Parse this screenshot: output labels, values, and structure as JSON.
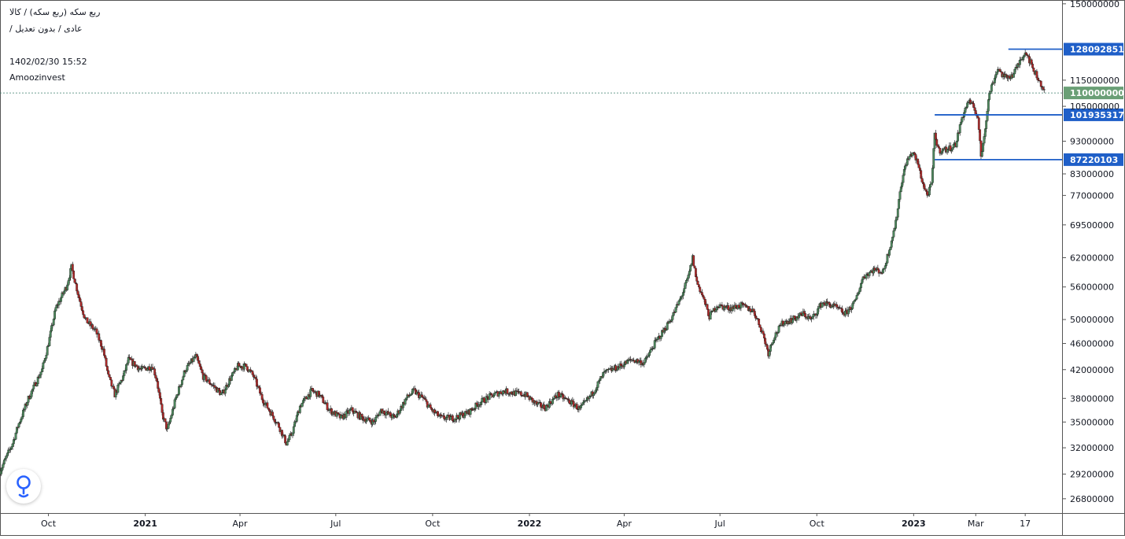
{
  "legend": {
    "symbol_line": "ربع سکه (ربع سکه) / کالا",
    "type_line": "عادی / بدون تعدیل /",
    "datetime": "1402/02/30 15:52",
    "brand": "Amoozinvest"
  },
  "colors": {
    "up": "#4e8a5e",
    "down": "#b02a2a",
    "wick": "#222222",
    "level_line": "#1f5fc8",
    "level_label_bg": "#1f5fc8",
    "last_price_bg": "#6a9f76",
    "last_price_line": "#3d7d6b",
    "axis_text": "#131722",
    "border": "#555555"
  },
  "chart_data": {
    "type": "candlestick",
    "y_scale": "log",
    "y_range": [
      25500000,
      152000000
    ],
    "y_ticks": [
      150000000,
      115000000,
      105000000,
      93000000,
      83000000,
      77000000,
      69500000,
      62000000,
      56000000,
      50000000,
      46000000,
      42000000,
      38000000,
      35000000,
      32000000,
      29200000,
      26800000
    ],
    "y_tick_labels": [
      "150000000",
      "115000000",
      "105000000",
      "93000000",
      "83000000",
      "77000000",
      "69500000",
      "62000000",
      "56000000",
      "50000000",
      "46000000",
      "42000000",
      "38000000",
      "35000000",
      "32000000",
      "29200000",
      "26800000"
    ],
    "x_ticks": [
      {
        "label": "Oct",
        "date": "2020-10-01",
        "bold": false
      },
      {
        "label": "2021",
        "date": "2021-01-01",
        "bold": true
      },
      {
        "label": "Apr",
        "date": "2021-04-01",
        "bold": false
      },
      {
        "label": "Jul",
        "date": "2021-07-01",
        "bold": false
      },
      {
        "label": "Oct",
        "date": "2021-10-01",
        "bold": false
      },
      {
        "label": "2022",
        "date": "2022-01-01",
        "bold": true
      },
      {
        "label": "Apr",
        "date": "2022-04-01",
        "bold": false
      },
      {
        "label": "Jul",
        "date": "2022-07-01",
        "bold": false
      },
      {
        "label": "Oct",
        "date": "2022-10-01",
        "bold": false
      },
      {
        "label": "2023",
        "date": "2023-01-01",
        "bold": true
      },
      {
        "label": "Mar",
        "date": "2023-03-01",
        "bold": false
      },
      {
        "label": "17",
        "date": "2023-04-17",
        "bold": false
      }
    ],
    "x_range": [
      "2020-08-16",
      "2023-05-22"
    ],
    "anchors": [
      [
        "2020-08-16",
        29500000
      ],
      [
        "2020-08-28",
        32500000
      ],
      [
        "2020-09-02",
        34500000
      ],
      [
        "2020-09-12",
        38000000
      ],
      [
        "2020-09-25",
        42000000
      ],
      [
        "2020-10-01",
        46000000
      ],
      [
        "2020-10-08",
        52000000
      ],
      [
        "2020-10-18",
        56000000
      ],
      [
        "2020-10-23",
        60000000
      ],
      [
        "2020-10-30",
        54000000
      ],
      [
        "2020-11-05",
        50000000
      ],
      [
        "2020-11-15",
        48000000
      ],
      [
        "2020-11-22",
        45000000
      ],
      [
        "2020-11-27",
        41000000
      ],
      [
        "2020-12-03",
        38500000
      ],
      [
        "2020-12-11",
        41000000
      ],
      [
        "2020-12-16",
        43500000
      ],
      [
        "2020-12-28",
        42000000
      ],
      [
        "2021-01-08",
        42500000
      ],
      [
        "2021-01-12",
        40500000
      ],
      [
        "2021-01-17",
        36000000
      ],
      [
        "2021-01-22",
        34000000
      ],
      [
        "2021-01-30",
        38000000
      ],
      [
        "2021-02-08",
        42000000
      ],
      [
        "2021-02-18",
        44000000
      ],
      [
        "2021-02-25",
        41000000
      ],
      [
        "2021-03-08",
        39500000
      ],
      [
        "2021-03-15",
        38500000
      ],
      [
        "2021-03-22",
        40500000
      ],
      [
        "2021-03-30",
        42500000
      ],
      [
        "2021-04-07",
        42500000
      ],
      [
        "2021-04-14",
        41000000
      ],
      [
        "2021-04-22",
        38000000
      ],
      [
        "2021-05-01",
        36000000
      ],
      [
        "2021-05-08",
        34500000
      ],
      [
        "2021-05-15",
        32500000
      ],
      [
        "2021-05-20",
        33500000
      ],
      [
        "2021-05-28",
        37000000
      ],
      [
        "2021-06-08",
        39000000
      ],
      [
        "2021-06-15",
        38500000
      ],
      [
        "2021-06-25",
        36500000
      ],
      [
        "2021-07-06",
        35500000
      ],
      [
        "2021-07-16",
        36500000
      ],
      [
        "2021-07-26",
        35500000
      ],
      [
        "2021-08-06",
        35000000
      ],
      [
        "2021-08-13",
        36500000
      ],
      [
        "2021-08-26",
        35500000
      ],
      [
        "2021-09-06",
        38000000
      ],
      [
        "2021-09-13",
        39000000
      ],
      [
        "2021-09-22",
        38000000
      ],
      [
        "2021-09-30",
        36500000
      ],
      [
        "2021-10-09",
        35500000
      ],
      [
        "2021-10-22",
        35500000
      ],
      [
        "2021-11-04",
        36200000
      ],
      [
        "2021-11-15",
        37500000
      ],
      [
        "2021-11-28",
        38500000
      ],
      [
        "2021-12-08",
        39000000
      ],
      [
        "2021-12-18",
        38700000
      ],
      [
        "2021-12-28",
        38500000
      ],
      [
        "2022-01-08",
        37200000
      ],
      [
        "2022-01-16",
        36800000
      ],
      [
        "2022-01-28",
        38500000
      ],
      [
        "2022-02-09",
        37500000
      ],
      [
        "2022-02-18",
        36600000
      ],
      [
        "2022-03-01",
        38500000
      ],
      [
        "2022-03-13",
        41500000
      ],
      [
        "2022-03-28",
        42500000
      ],
      [
        "2022-04-08",
        43500000
      ],
      [
        "2022-04-20",
        43000000
      ],
      [
        "2022-04-30",
        46000000
      ],
      [
        "2022-05-10",
        48500000
      ],
      [
        "2022-05-18",
        51000000
      ],
      [
        "2022-05-25",
        54000000
      ],
      [
        "2022-06-01",
        58000000
      ],
      [
        "2022-06-05",
        62000000
      ],
      [
        "2022-06-09",
        57000000
      ],
      [
        "2022-06-14",
        54500000
      ],
      [
        "2022-06-21",
        50500000
      ],
      [
        "2022-06-28",
        52500000
      ],
      [
        "2022-07-10",
        52000000
      ],
      [
        "2022-07-21",
        52500000
      ],
      [
        "2022-08-02",
        51500000
      ],
      [
        "2022-08-10",
        48000000
      ],
      [
        "2022-08-16",
        44500000
      ],
      [
        "2022-08-21",
        47000000
      ],
      [
        "2022-08-30",
        49500000
      ],
      [
        "2022-09-08",
        50000000
      ],
      [
        "2022-09-18",
        51000000
      ],
      [
        "2022-09-26",
        50000000
      ],
      [
        "2022-10-06",
        53000000
      ],
      [
        "2022-10-16",
        52500000
      ],
      [
        "2022-10-28",
        51000000
      ],
      [
        "2022-11-06",
        53000000
      ],
      [
        "2022-11-14",
        58000000
      ],
      [
        "2022-11-24",
        59500000
      ],
      [
        "2022-12-03",
        59000000
      ],
      [
        "2022-12-09",
        64000000
      ],
      [
        "2022-12-15",
        70000000
      ],
      [
        "2022-12-20",
        80000000
      ],
      [
        "2022-12-25",
        86500000
      ],
      [
        "2022-12-31",
        89500000
      ],
      [
        "2023-01-05",
        86000000
      ],
      [
        "2023-01-10",
        80000000
      ],
      [
        "2023-01-14",
        77000000
      ],
      [
        "2023-01-18",
        80000000
      ],
      [
        "2023-01-21",
        95000000
      ],
      [
        "2023-01-25",
        90000000
      ],
      [
        "2023-02-03",
        90500000
      ],
      [
        "2023-02-10",
        92000000
      ],
      [
        "2023-02-16",
        101000000
      ],
      [
        "2023-02-22",
        107000000
      ],
      [
        "2023-02-28",
        104000000
      ],
      [
        "2023-03-03",
        101000000
      ],
      [
        "2023-03-06",
        88000000
      ],
      [
        "2023-03-09",
        95000000
      ],
      [
        "2023-03-14",
        110000000
      ],
      [
        "2023-03-22",
        120000000
      ],
      [
        "2023-03-28",
        116000000
      ],
      [
        "2023-04-05",
        117000000
      ],
      [
        "2023-04-10",
        121000000
      ],
      [
        "2023-04-14",
        125000000
      ],
      [
        "2023-04-18",
        127000000
      ],
      [
        "2023-04-23",
        121000000
      ],
      [
        "2023-04-30",
        115000000
      ],
      [
        "2023-05-06",
        110000000
      ]
    ],
    "levels": [
      {
        "value": 128092851,
        "label": "128092851",
        "from_date": "2023-04-01"
      },
      {
        "value": 101935317,
        "label": "101935317",
        "from_date": "2023-01-21"
      },
      {
        "value": 87220103,
        "label": "87220103",
        "from_date": "2023-01-21"
      }
    ],
    "last_price": {
      "value": 110000000,
      "label": "110000000"
    }
  }
}
